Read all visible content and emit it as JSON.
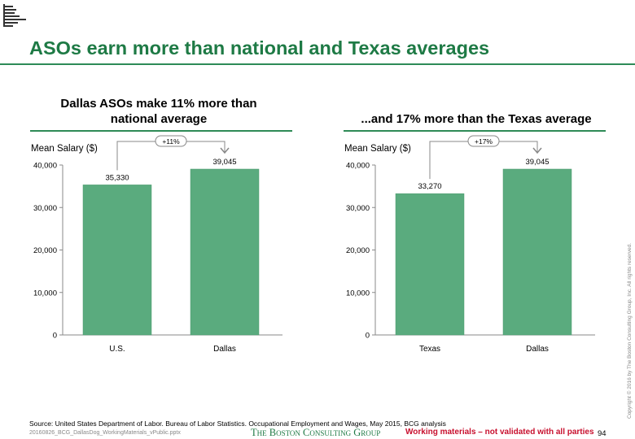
{
  "page": {
    "title": "ASOs earn more than national and Texas averages",
    "source": "Source: United States Department of Labor. Bureau of Labor Statistics. Occupational Employment and Wages, May 2015, BCG analysis",
    "filename": "20160826_BCG_DallasDog_WorkingMaterials_vPublic.pptx",
    "brand": "The Boston Consulting Group",
    "working_note": "Working materials – not validated with all parties",
    "page_number": "94",
    "copyright": "Copyright © 2016 by The Boston Consulting Group, Inc. All rights reserved."
  },
  "colors": {
    "title_green": "#1e7a45",
    "bar_green": "#5aab7e",
    "rule_green": "#2e8b57",
    "warning_red": "#c8102e",
    "axis": "#888888"
  },
  "chart_data": [
    {
      "type": "bar",
      "title": "Dallas ASOs make 11% more than national average",
      "ylabel": "Mean Salary ($)",
      "categories": [
        "U.S.",
        "Dallas"
      ],
      "values": [
        35330,
        39045
      ],
      "value_labels": [
        "35,330",
        "39,045"
      ],
      "ylim": [
        0,
        40000
      ],
      "yticks": [
        0,
        10000,
        20000,
        30000,
        40000
      ],
      "ytick_labels": [
        "0",
        "10,000",
        "20,000",
        "30,000",
        "40,000"
      ],
      "grid": false,
      "annotation": "+11%"
    },
    {
      "type": "bar",
      "title": "...and 17% more than the Texas average",
      "ylabel": "Mean Salary ($)",
      "categories": [
        "Texas",
        "Dallas"
      ],
      "values": [
        33270,
        39045
      ],
      "value_labels": [
        "33,270",
        "39,045"
      ],
      "ylim": [
        0,
        40000
      ],
      "yticks": [
        0,
        10000,
        20000,
        30000,
        40000
      ],
      "ytick_labels": [
        "0",
        "10,000",
        "20,000",
        "30,000",
        "40,000"
      ],
      "grid": false,
      "annotation": "+17%"
    }
  ]
}
